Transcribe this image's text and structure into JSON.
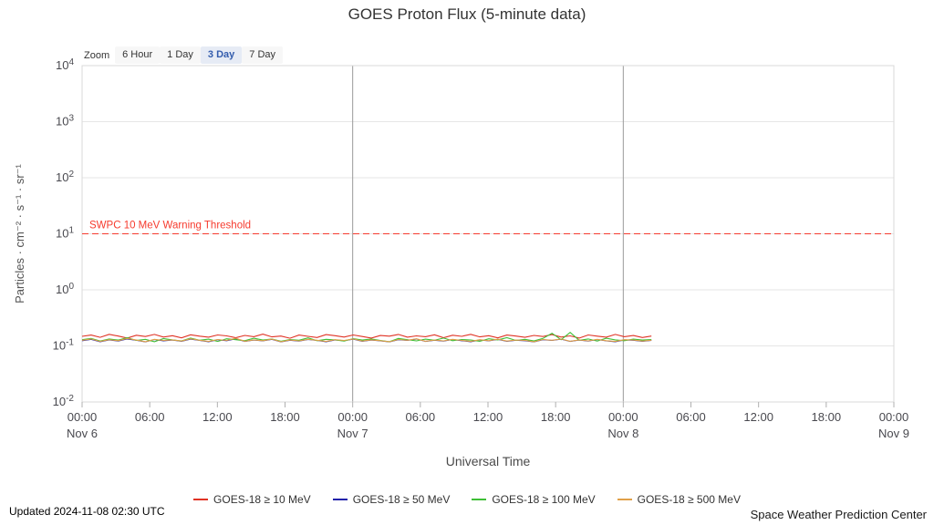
{
  "title": "GOES Proton Flux (5-minute data)",
  "range_selector": {
    "label": "Zoom",
    "buttons": [
      {
        "label": "6 Hour",
        "selected": false
      },
      {
        "label": "1 Day",
        "selected": false
      },
      {
        "label": "3 Day",
        "selected": true
      },
      {
        "label": "7 Day",
        "selected": false
      }
    ]
  },
  "footer": {
    "updated": "Updated 2024-11-08 02:30 UTC",
    "source": "Space Weather Prediction Center"
  },
  "chart_data": {
    "type": "line",
    "title": "GOES Proton Flux (5-minute data)",
    "xlabel": "Universal Time",
    "ylabel": "Particles · cm⁻² · s⁻¹ · sr⁻¹",
    "y_scale": "log",
    "ylim_exponents": [
      -2,
      4
    ],
    "x_range_hours": [
      0,
      72
    ],
    "x_major_ticks_hours": [
      0,
      6,
      12,
      18,
      24,
      30,
      36,
      42,
      48,
      54,
      60,
      66,
      72
    ],
    "x_tick_labels": [
      "00:00",
      "06:00",
      "12:00",
      "18:00",
      "00:00",
      "06:00",
      "12:00",
      "18:00",
      "00:00",
      "06:00",
      "12:00",
      "18:00",
      "00:00"
    ],
    "day_labels": [
      {
        "hour": 0,
        "label": "Nov 6"
      },
      {
        "hour": 24,
        "label": "Nov 7"
      },
      {
        "hour": 48,
        "label": "Nov 8"
      },
      {
        "hour": 72,
        "label": "Nov 9"
      }
    ],
    "day_boundary_lines_hours": [
      24,
      48
    ],
    "grid": "on",
    "legend_position": "bottom",
    "threshold": {
      "value": 10,
      "label": "SWPC 10 MeV Warning Threshold",
      "color": "#f63b2e"
    },
    "data_start_hour": 0,
    "data_end_hour": 50.5,
    "series": [
      {
        "name": "GOES-18 ≥ 10 MeV",
        "color": "#e03224",
        "values": [
          0.148,
          0.156,
          0.142,
          0.161,
          0.15,
          0.138,
          0.155,
          0.147,
          0.16,
          0.144,
          0.152,
          0.139,
          0.158,
          0.149,
          0.143,
          0.157,
          0.151,
          0.14,
          0.154,
          0.146,
          0.162,
          0.145,
          0.15,
          0.137,
          0.156,
          0.148,
          0.141,
          0.159,
          0.152,
          0.144,
          0.157,
          0.147,
          0.138,
          0.153,
          0.149,
          0.16,
          0.143,
          0.151,
          0.146,
          0.158,
          0.14,
          0.155,
          0.148,
          0.161,
          0.145,
          0.152,
          0.139,
          0.156,
          0.15,
          0.142,
          0.154,
          0.147,
          0.159,
          0.144,
          0.151,
          0.138,
          0.157,
          0.149,
          0.143,
          0.16,
          0.146,
          0.153,
          0.141,
          0.15
        ]
      },
      {
        "name": "GOES-18 ≥ 50 MeV",
        "color": "#2222aa",
        "values": [
          0.124,
          0.131,
          0.119,
          0.128,
          0.122,
          0.133,
          0.126,
          0.118,
          0.13,
          0.123,
          0.127,
          0.121,
          0.132,
          0.125,
          0.119,
          0.129,
          0.124,
          0.134,
          0.12,
          0.127,
          0.123,
          0.131,
          0.118,
          0.126,
          0.122,
          0.13,
          0.125,
          0.119,
          0.128,
          0.124,
          0.132,
          0.121,
          0.127,
          0.123,
          0.118,
          0.129,
          0.125,
          0.133,
          0.12,
          0.126,
          0.122,
          0.13,
          0.124,
          0.119,
          0.128,
          0.123,
          0.131,
          0.121,
          0.126,
          0.124,
          0.118,
          0.129,
          0.125,
          0.132,
          0.12,
          0.127,
          0.122,
          0.13,
          0.123,
          0.119,
          0.128,
          0.126,
          0.121,
          0.125
        ]
      },
      {
        "name": "GOES-18 ≥ 100 MeV",
        "color": "#3fbf36",
        "values": [
          0.129,
          0.136,
          0.122,
          0.133,
          0.127,
          0.14,
          0.125,
          0.131,
          0.119,
          0.135,
          0.128,
          0.123,
          0.138,
          0.126,
          0.132,
          0.12,
          0.134,
          0.129,
          0.124,
          0.137,
          0.127,
          0.133,
          0.121,
          0.13,
          0.126,
          0.139,
          0.124,
          0.131,
          0.128,
          0.122,
          0.135,
          0.127,
          0.133,
          0.125,
          0.119,
          0.136,
          0.129,
          0.123,
          0.132,
          0.126,
          0.138,
          0.124,
          0.13,
          0.127,
          0.121,
          0.134,
          0.128,
          0.14,
          0.125,
          0.131,
          0.123,
          0.136,
          0.168,
          0.129,
          0.174,
          0.126,
          0.133,
          0.122,
          0.137,
          0.128,
          0.124,
          0.132,
          0.127,
          0.13
        ]
      },
      {
        "name": "GOES-18 ≥ 500 MeV",
        "color": "#e0a048",
        "values": [
          0.126,
          0.133,
          0.12,
          0.129,
          0.124,
          0.136,
          0.127,
          0.119,
          0.131,
          0.125,
          0.128,
          0.122,
          0.134,
          0.126,
          0.12,
          0.13,
          0.125,
          0.137,
          0.121,
          0.128,
          0.124,
          0.132,
          0.119,
          0.127,
          0.123,
          0.131,
          0.126,
          0.12,
          0.129,
          0.125,
          0.133,
          0.122,
          0.128,
          0.124,
          0.119,
          0.13,
          0.126,
          0.134,
          0.121,
          0.127,
          0.123,
          0.131,
          0.125,
          0.12,
          0.129,
          0.124,
          0.132,
          0.122,
          0.127,
          0.125,
          0.119,
          0.13,
          0.126,
          0.133,
          0.121,
          0.128,
          0.123,
          0.131,
          0.124,
          0.12,
          0.129,
          0.127,
          0.122,
          0.126
        ]
      }
    ]
  }
}
